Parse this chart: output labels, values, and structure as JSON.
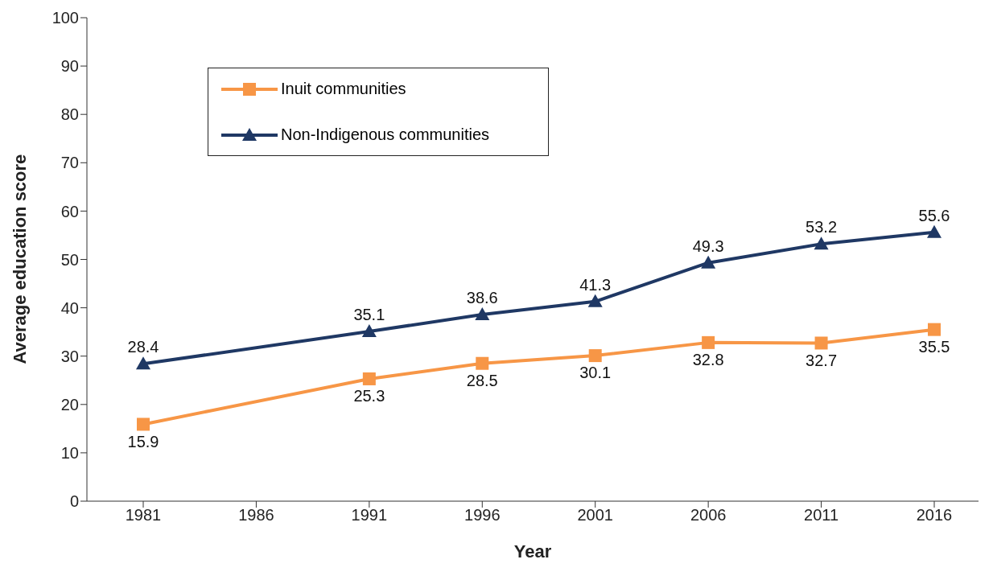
{
  "chart_data": {
    "type": "line",
    "xlabel": "Year",
    "ylabel": "Average education score",
    "categories": [
      "1981",
      "1986",
      "1991",
      "1996",
      "2001",
      "2006",
      "2011",
      "2016"
    ],
    "series": [
      {
        "name": "Inuit communities",
        "color": "#f79646",
        "marker": "square",
        "values": [
          15.9,
          null,
          25.3,
          28.5,
          30.1,
          32.8,
          32.7,
          35.5
        ]
      },
      {
        "name": "Non-Indigenous communities",
        "color": "#1f3864",
        "marker": "triangle",
        "values": [
          28.4,
          null,
          35.1,
          38.6,
          41.3,
          49.3,
          53.2,
          55.6
        ]
      }
    ],
    "ylim": [
      0,
      100
    ],
    "yticks": [
      0,
      10,
      20,
      30,
      40,
      50,
      60,
      70,
      80,
      90,
      100
    ],
    "data_labels": true,
    "legend": "top left",
    "grid": false,
    "line_style": "solid"
  }
}
